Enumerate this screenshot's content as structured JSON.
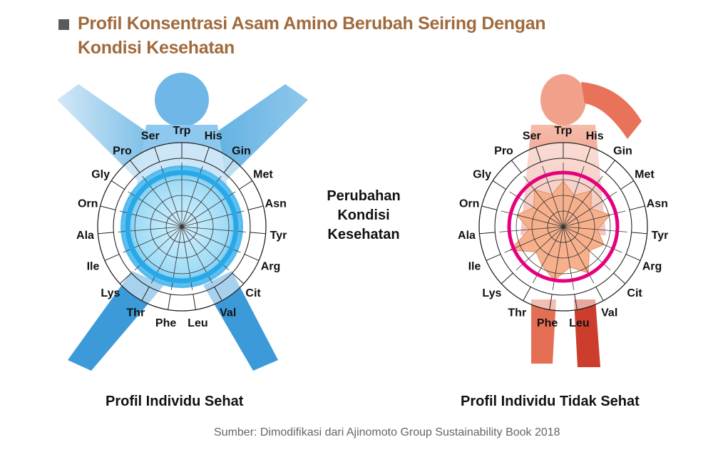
{
  "title": "Profil Konsentrasi Asam Amino Berubah Seiring Dengan Kondisi Kesehatan",
  "center_label": [
    "Perubahan",
    "Kondisi",
    "Kesehatan"
  ],
  "amino_acids": [
    "Trp",
    "His",
    "Gin",
    "Met",
    "Asn",
    "Tyr",
    "Arg",
    "Cit",
    "Val",
    "Leu",
    "Phe",
    "Thr",
    "Lys",
    "Ile",
    "Ala",
    "Orn",
    "Gly",
    "Pro",
    "Ser"
  ],
  "healthy": {
    "caption": "Profil Individu Sehat",
    "colors": {
      "figure": "#5aaee0",
      "profile": "#29a8e8",
      "fill": "#8fd4f5"
    }
  },
  "unhealthy": {
    "caption": "Profil Individu Tidak Sehat",
    "colors": {
      "figure": "#e8735a",
      "profile": "#e6007e",
      "fill": "#f6b08c"
    },
    "profile_levels": [
      0.8,
      0.58,
      0.8,
      0.58,
      0.85,
      0.6,
      0.78,
      0.62,
      0.92,
      0.72,
      0.95,
      0.78,
      0.65,
      1.02,
      0.6,
      0.84,
      0.62,
      0.82,
      0.6
    ]
  },
  "source": "Sumber: Dimodifikasi dari Ajinomoto Group Sustainability Book 2018"
}
